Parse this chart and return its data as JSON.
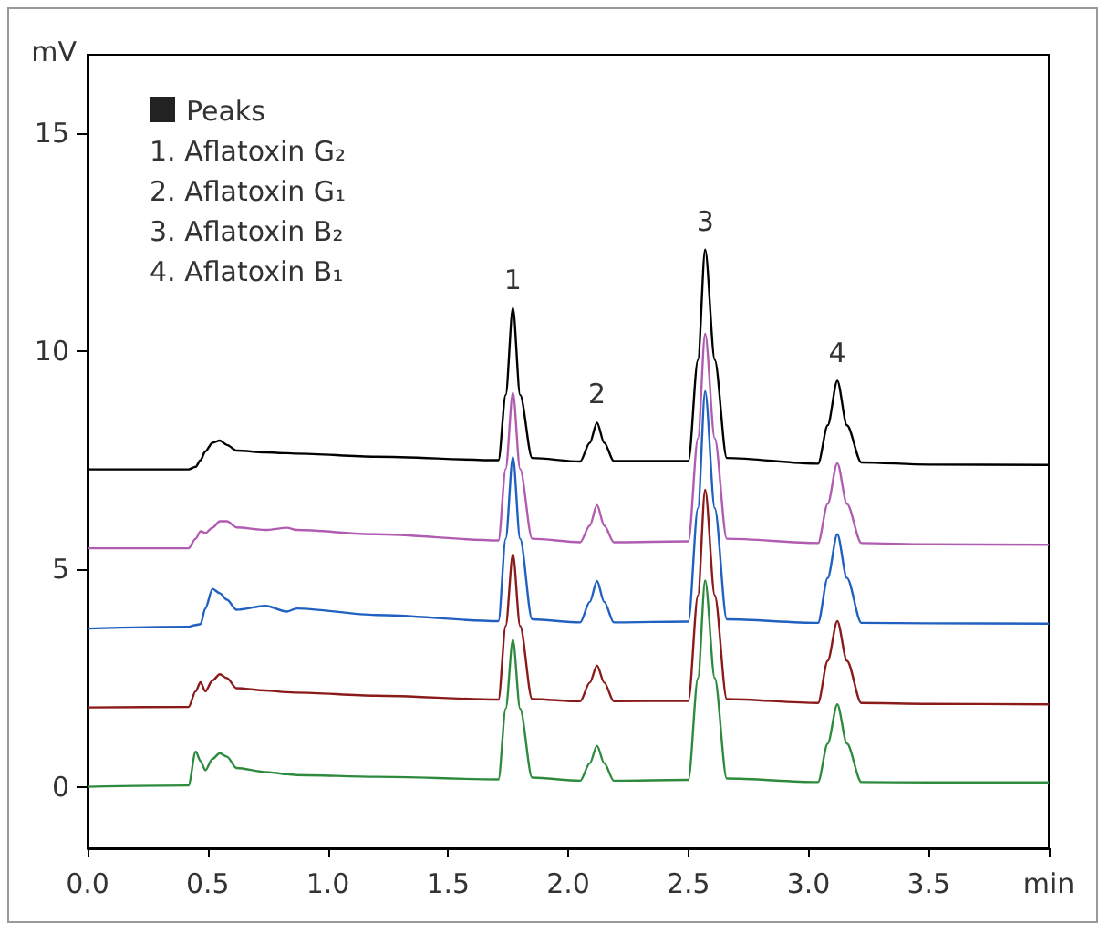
{
  "chart_data": {
    "type": "line",
    "xlabel": "min",
    "ylabel": "mV",
    "marker": "none",
    "xlim": [
      0,
      4
    ],
    "xticks": [
      {
        "value": 0,
        "label": "0.0"
      },
      {
        "value": 0.5,
        "label": "0.5"
      },
      {
        "value": 1,
        "label": "1.0"
      },
      {
        "value": 1.5,
        "label": "1.5"
      },
      {
        "value": 2,
        "label": "2.0"
      },
      {
        "value": 2.5,
        "label": "2.5"
      },
      {
        "value": 3,
        "label": "3.0"
      },
      {
        "value": 3.5,
        "label": "3.5"
      },
      {
        "value": 4,
        "label": null
      }
    ],
    "ylim": [
      -1.4,
      16.8
    ],
    "yticks": [
      0,
      5,
      10,
      15
    ],
    "x": [
      0,
      0.42,
      0.45,
      0.47,
      0.49,
      0.52,
      0.55,
      0.58,
      0.62,
      0.74,
      0.83,
      0.87,
      1.2,
      1.71,
      1.74,
      1.77,
      1.8,
      1.85,
      2.05,
      2.09,
      2.12,
      2.15,
      2.19,
      2.5,
      2.54,
      2.57,
      2.61,
      2.66,
      3.04,
      3.08,
      3.12,
      3.16,
      3.22,
      3.5,
      4.0
    ],
    "series": [
      {
        "color": "#000000",
        "values": [
          7.29,
          7.29,
          7.35,
          7.5,
          7.7,
          7.9,
          7.95,
          7.85,
          7.72,
          7.68,
          7.66,
          7.65,
          7.58,
          7.5,
          9.0,
          10.99,
          9.0,
          7.55,
          7.47,
          7.9,
          8.36,
          7.9,
          7.48,
          7.48,
          9.8,
          12.33,
          9.8,
          7.55,
          7.42,
          8.3,
          9.32,
          8.3,
          7.45,
          7.4,
          7.39
        ]
      },
      {
        "color": "#b05cb0",
        "values": [
          5.48,
          5.48,
          5.7,
          5.87,
          5.83,
          5.95,
          6.1,
          6.1,
          5.96,
          5.9,
          5.95,
          5.9,
          5.8,
          5.66,
          7.3,
          9.05,
          7.3,
          5.7,
          5.62,
          6.0,
          6.47,
          6.0,
          5.62,
          5.64,
          8.0,
          10.4,
          8.0,
          5.7,
          5.6,
          6.5,
          7.43,
          6.5,
          5.6,
          5.57,
          5.56
        ]
      },
      {
        "color": "#2060c0",
        "values": [
          3.64,
          3.68,
          3.72,
          3.74,
          4.1,
          4.55,
          4.45,
          4.3,
          4.07,
          4.16,
          4.03,
          4.1,
          3.95,
          3.81,
          5.7,
          7.57,
          5.7,
          3.85,
          3.78,
          4.25,
          4.73,
          4.25,
          3.78,
          3.8,
          6.4,
          9.08,
          6.4,
          3.85,
          3.77,
          4.8,
          5.8,
          4.8,
          3.77,
          3.76,
          3.75
        ]
      },
      {
        "color": "#8b1a1a",
        "values": [
          1.83,
          1.84,
          2.2,
          2.41,
          2.2,
          2.45,
          2.59,
          2.5,
          2.27,
          2.22,
          2.18,
          2.17,
          2.1,
          2.01,
          3.7,
          5.34,
          3.7,
          2.02,
          1.97,
          2.4,
          2.79,
          2.4,
          1.97,
          1.98,
          4.4,
          6.82,
          4.4,
          2.02,
          1.93,
          2.9,
          3.81,
          2.9,
          1.93,
          1.91,
          1.9
        ]
      },
      {
        "color": "#2e8b3e",
        "values": [
          0.01,
          0.04,
          0.82,
          0.6,
          0.39,
          0.65,
          0.78,
          0.7,
          0.44,
          0.35,
          0.3,
          0.28,
          0.24,
          0.18,
          1.8,
          3.38,
          1.8,
          0.22,
          0.15,
          0.55,
          0.95,
          0.55,
          0.15,
          0.17,
          2.5,
          4.74,
          2.5,
          0.2,
          0.12,
          1.0,
          1.9,
          1.0,
          0.12,
          0.11,
          0.11
        ]
      }
    ],
    "annotations": [
      "Peaks",
      "1. Aflatoxin G₂",
      "2. Aflatoxin G₁",
      "3. Aflatoxin B₂",
      "4. Aflatoxin B₁",
      {
        "text": "1",
        "x": 1.77,
        "y": 10.99
      },
      {
        "text": "2",
        "x": 2.12,
        "y": 8.36
      },
      {
        "text": "3",
        "x": 2.57,
        "y": 12.33
      },
      {
        "text": "4",
        "x": 3.12,
        "y": 9.32
      }
    ]
  }
}
